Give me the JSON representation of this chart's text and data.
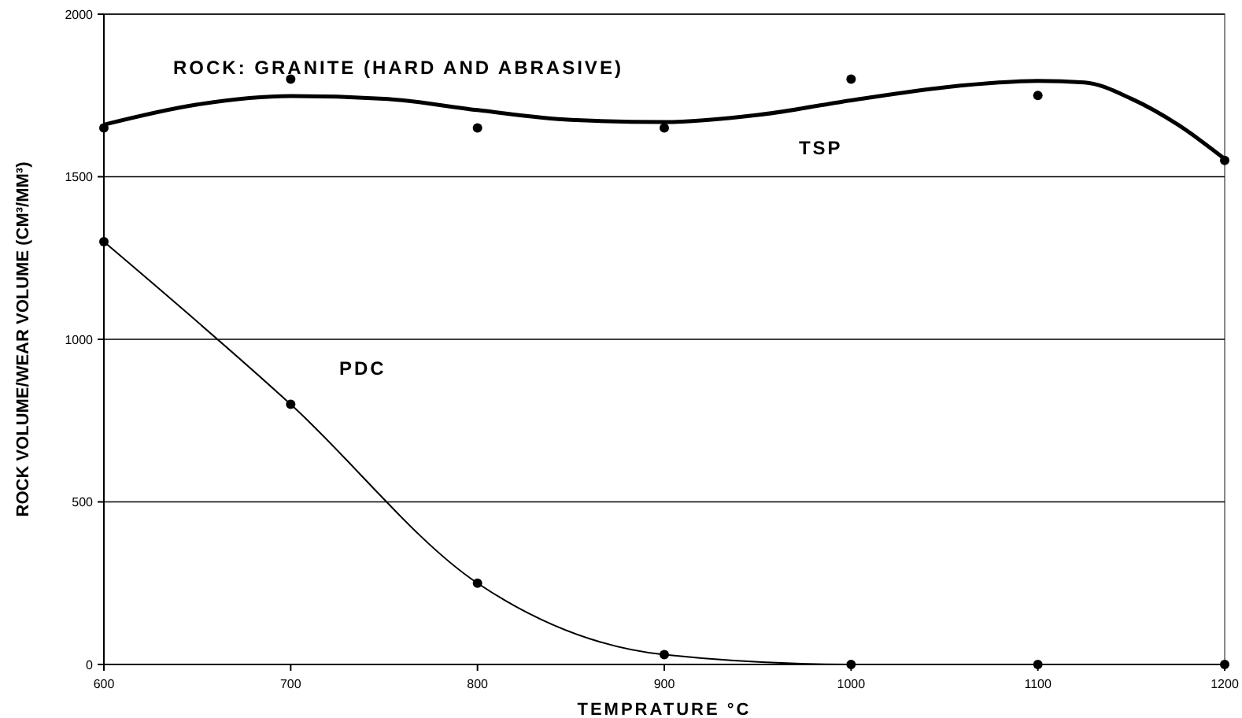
{
  "chart_data": {
    "type": "line",
    "xlabel": "TEMPRATURE °C",
    "ylabel": "ROCK VOLUME/WEAR VOLUME (CM³/MM³)",
    "annotations": [
      "ROCK: GRANITE (HARD AND ABRASIVE)"
    ],
    "x": [
      600,
      700,
      800,
      900,
      1000,
      1100,
      1200
    ],
    "series": [
      {
        "name": "TSP",
        "type": "scatter",
        "color": "#000000",
        "values": [
          1650,
          1800,
          1650,
          1650,
          1800,
          1750,
          1550
        ]
      },
      {
        "color": "#000000",
        "marker": "none",
        "x": [
          600,
          650,
          700,
          750,
          800,
          850,
          900,
          950,
          1000,
          1050,
          1100,
          1125,
          1150,
          1175,
          1200
        ],
        "values": [
          1660,
          1722,
          1748,
          1740,
          1705,
          1675,
          1668,
          1690,
          1735,
          1775,
          1795,
          1790,
          1740,
          1660,
          1555
        ]
      },
      {
        "name": "PDC",
        "color": "#000000",
        "values": [
          1300,
          800,
          250,
          30,
          0,
          0,
          0
        ]
      }
    ],
    "xlim": [
      600,
      1200
    ],
    "xticks": [
      600,
      700,
      800,
      900,
      1000,
      1100,
      1200
    ],
    "ylim": [
      0,
      2000
    ],
    "yticks": [
      0,
      500,
      1000,
      1500,
      2000
    ],
    "grid": "y",
    "marker": "circle",
    "line_style": "solid"
  }
}
